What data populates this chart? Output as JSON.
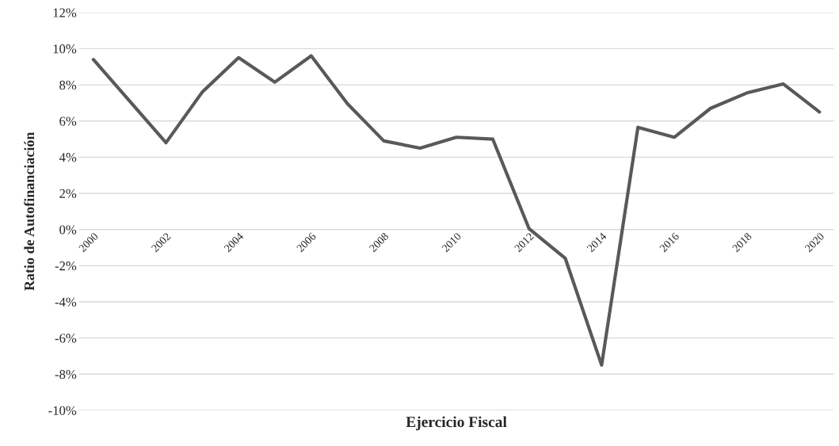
{
  "chart_data": {
    "type": "line",
    "xlabel": "Ejercicio Fiscal",
    "ylabel": "Ratio de Autofinanciación",
    "categories": [
      "2000",
      null,
      "2002",
      null,
      "2004",
      null,
      "2006",
      null,
      "2008",
      null,
      "2010",
      null,
      "2012",
      null,
      "2014",
      null,
      "2016",
      null,
      "2018",
      null,
      "2020"
    ],
    "series": [
      {
        "color": "#595959",
        "values": [
          9.4,
          7.1,
          4.8,
          7.6,
          9.5,
          8.15,
          9.6,
          6.95,
          4.9,
          4.5,
          5.1,
          5.0,
          0.05,
          -1.6,
          -7.5,
          5.65,
          5.1,
          6.7,
          7.55,
          8.05,
          6.5
        ]
      }
    ],
    "ylim": [
      -10,
      12
    ],
    "yticks": [
      {
        "value": -10,
        "label": "-10%"
      },
      {
        "value": -8,
        "label": "-8%"
      },
      {
        "value": -6,
        "label": "-6%"
      },
      {
        "value": -4,
        "label": "-4%"
      },
      {
        "value": -2,
        "label": "-2%"
      },
      {
        "value": 0,
        "label": "0%"
      },
      {
        "value": 2,
        "label": "2%"
      },
      {
        "value": 4,
        "label": "4%"
      },
      {
        "value": 6,
        "label": "6%"
      },
      {
        "value": 8,
        "label": "8%"
      },
      {
        "value": 10,
        "label": "10%"
      },
      {
        "value": 12,
        "label": "12%"
      }
    ],
    "grid": "y"
  }
}
